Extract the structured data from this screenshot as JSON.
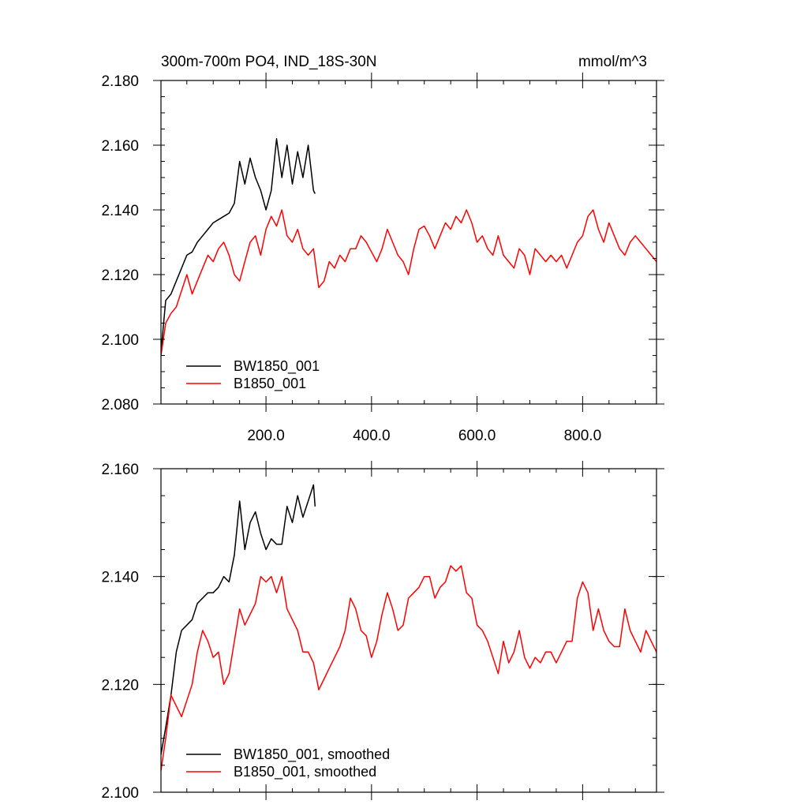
{
  "header": {
    "title": "300m-700m PO4, IND_18S-30N",
    "units": "mmol/m^3"
  },
  "chart_data": [
    {
      "type": "line",
      "xlim": [
        1,
        940
      ],
      "ylim": [
        2.08,
        2.18
      ],
      "xticks": [
        200,
        400,
        600,
        800
      ],
      "xtick_labels": [
        "200.0",
        "400.0",
        "600.0",
        "800.0"
      ],
      "yticks": [
        2.08,
        2.1,
        2.12,
        2.14,
        2.16,
        2.18
      ],
      "ytick_labels": [
        "2.080",
        "2.100",
        "2.120",
        "2.140",
        "2.160",
        "2.180"
      ],
      "grid": false,
      "legend_position": "bottom-left",
      "series": [
        {
          "name": "BW1850_001",
          "color": "#000000",
          "x": [
            1,
            10,
            20,
            30,
            40,
            50,
            60,
            70,
            80,
            90,
            100,
            110,
            120,
            130,
            140,
            150,
            160,
            170,
            180,
            190,
            200,
            210,
            220,
            230,
            240,
            250,
            260,
            270,
            280,
            290,
            293
          ],
          "y": [
            2.096,
            2.112,
            2.114,
            2.118,
            2.122,
            2.126,
            2.127,
            2.13,
            2.132,
            2.134,
            2.136,
            2.137,
            2.138,
            2.139,
            2.142,
            2.155,
            2.148,
            2.156,
            2.15,
            2.146,
            2.14,
            2.146,
            2.162,
            2.15,
            2.16,
            2.148,
            2.158,
            2.15,
            2.16,
            2.146,
            2.145
          ]
        },
        {
          "name": "B1850_001",
          "color": "#ff0000",
          "x": [
            1,
            10,
            20,
            30,
            40,
            50,
            60,
            70,
            80,
            90,
            100,
            110,
            120,
            130,
            140,
            150,
            160,
            170,
            180,
            190,
            200,
            210,
            220,
            230,
            240,
            250,
            260,
            270,
            280,
            290,
            300,
            310,
            320,
            330,
            340,
            350,
            360,
            370,
            380,
            390,
            400,
            410,
            420,
            430,
            440,
            450,
            460,
            470,
            480,
            490,
            500,
            510,
            520,
            530,
            540,
            550,
            560,
            570,
            580,
            590,
            600,
            610,
            620,
            630,
            640,
            650,
            660,
            670,
            680,
            690,
            700,
            710,
            720,
            730,
            740,
            750,
            760,
            770,
            780,
            790,
            800,
            810,
            820,
            830,
            840,
            850,
            860,
            870,
            880,
            890,
            900,
            910,
            920,
            930,
            940
          ],
          "y": [
            2.095,
            2.105,
            2.108,
            2.11,
            2.115,
            2.12,
            2.114,
            2.118,
            2.122,
            2.126,
            2.124,
            2.128,
            2.13,
            2.126,
            2.12,
            2.118,
            2.124,
            2.13,
            2.132,
            2.126,
            2.134,
            2.138,
            2.135,
            2.14,
            2.132,
            2.13,
            2.134,
            2.128,
            2.126,
            2.128,
            2.116,
            2.118,
            2.124,
            2.122,
            2.126,
            2.124,
            2.128,
            2.128,
            2.132,
            2.13,
            2.127,
            2.124,
            2.128,
            2.134,
            2.13,
            2.126,
            2.124,
            2.12,
            2.128,
            2.134,
            2.135,
            2.132,
            2.128,
            2.132,
            2.136,
            2.134,
            2.138,
            2.136,
            2.14,
            2.136,
            2.13,
            2.132,
            2.128,
            2.126,
            2.132,
            2.126,
            2.124,
            2.122,
            2.128,
            2.126,
            2.12,
            2.128,
            2.126,
            2.124,
            2.126,
            2.124,
            2.126,
            2.122,
            2.126,
            2.13,
            2.132,
            2.138,
            2.14,
            2.134,
            2.13,
            2.136,
            2.132,
            2.128,
            2.126,
            2.13,
            2.132,
            2.13,
            2.128,
            2.126,
            2.124
          ]
        }
      ]
    },
    {
      "type": "line",
      "xlim": [
        1,
        940
      ],
      "ylim": [
        2.1,
        2.16
      ],
      "xticks": [
        200,
        400,
        600,
        800
      ],
      "xtick_labels": [],
      "yticks": [
        2.1,
        2.12,
        2.14,
        2.16
      ],
      "ytick_labels": [
        "2.100",
        "2.120",
        "2.140",
        "2.160"
      ],
      "grid": false,
      "legend_position": "bottom-left",
      "series": [
        {
          "name": "BW1850_001, smoothed",
          "color": "#000000",
          "x": [
            1,
            10,
            20,
            30,
            40,
            50,
            60,
            70,
            80,
            90,
            100,
            110,
            120,
            130,
            140,
            150,
            160,
            170,
            180,
            190,
            200,
            210,
            220,
            230,
            240,
            250,
            260,
            270,
            280,
            290,
            293
          ],
          "y": [
            2.107,
            2.112,
            2.118,
            2.126,
            2.13,
            2.131,
            2.132,
            2.135,
            2.136,
            2.137,
            2.137,
            2.138,
            2.14,
            2.139,
            2.144,
            2.154,
            2.145,
            2.15,
            2.152,
            2.148,
            2.145,
            2.147,
            2.146,
            2.146,
            2.153,
            2.15,
            2.155,
            2.151,
            2.154,
            2.157,
            2.153
          ]
        },
        {
          "name": "B1850_001, smoothed",
          "color": "#ff0000",
          "x": [
            1,
            10,
            20,
            30,
            40,
            50,
            60,
            70,
            80,
            90,
            100,
            110,
            120,
            130,
            140,
            150,
            160,
            170,
            180,
            190,
            200,
            210,
            220,
            230,
            240,
            250,
            260,
            270,
            280,
            290,
            300,
            310,
            320,
            330,
            340,
            350,
            360,
            370,
            380,
            390,
            400,
            410,
            420,
            430,
            440,
            450,
            460,
            470,
            480,
            490,
            500,
            510,
            520,
            530,
            540,
            550,
            560,
            570,
            580,
            590,
            600,
            610,
            620,
            630,
            640,
            650,
            660,
            670,
            680,
            690,
            700,
            710,
            720,
            730,
            740,
            750,
            760,
            770,
            780,
            790,
            800,
            810,
            820,
            830,
            840,
            850,
            860,
            870,
            880,
            890,
            900,
            910,
            920,
            930,
            940
          ],
          "y": [
            2.104,
            2.11,
            2.118,
            2.116,
            2.114,
            2.117,
            2.12,
            2.126,
            2.13,
            2.128,
            2.125,
            2.126,
            2.12,
            2.122,
            2.128,
            2.134,
            2.131,
            2.133,
            2.135,
            2.14,
            2.139,
            2.14,
            2.137,
            2.14,
            2.134,
            2.132,
            2.13,
            2.126,
            2.126,
            2.124,
            2.119,
            2.121,
            2.123,
            2.125,
            2.127,
            2.13,
            2.136,
            2.134,
            2.13,
            2.129,
            2.125,
            2.128,
            2.133,
            2.137,
            2.134,
            2.13,
            2.131,
            2.136,
            2.137,
            2.138,
            2.14,
            2.14,
            2.136,
            2.138,
            2.139,
            2.142,
            2.141,
            2.142,
            2.137,
            2.136,
            2.131,
            2.13,
            2.128,
            2.125,
            2.122,
            2.128,
            2.124,
            2.126,
            2.13,
            2.125,
            2.123,
            2.125,
            2.124,
            2.126,
            2.126,
            2.124,
            2.126,
            2.128,
            2.128,
            2.136,
            2.139,
            2.137,
            2.13,
            2.134,
            2.13,
            2.128,
            2.127,
            2.127,
            2.134,
            2.13,
            2.128,
            2.126,
            2.13,
            2.128,
            2.126
          ]
        }
      ]
    }
  ]
}
